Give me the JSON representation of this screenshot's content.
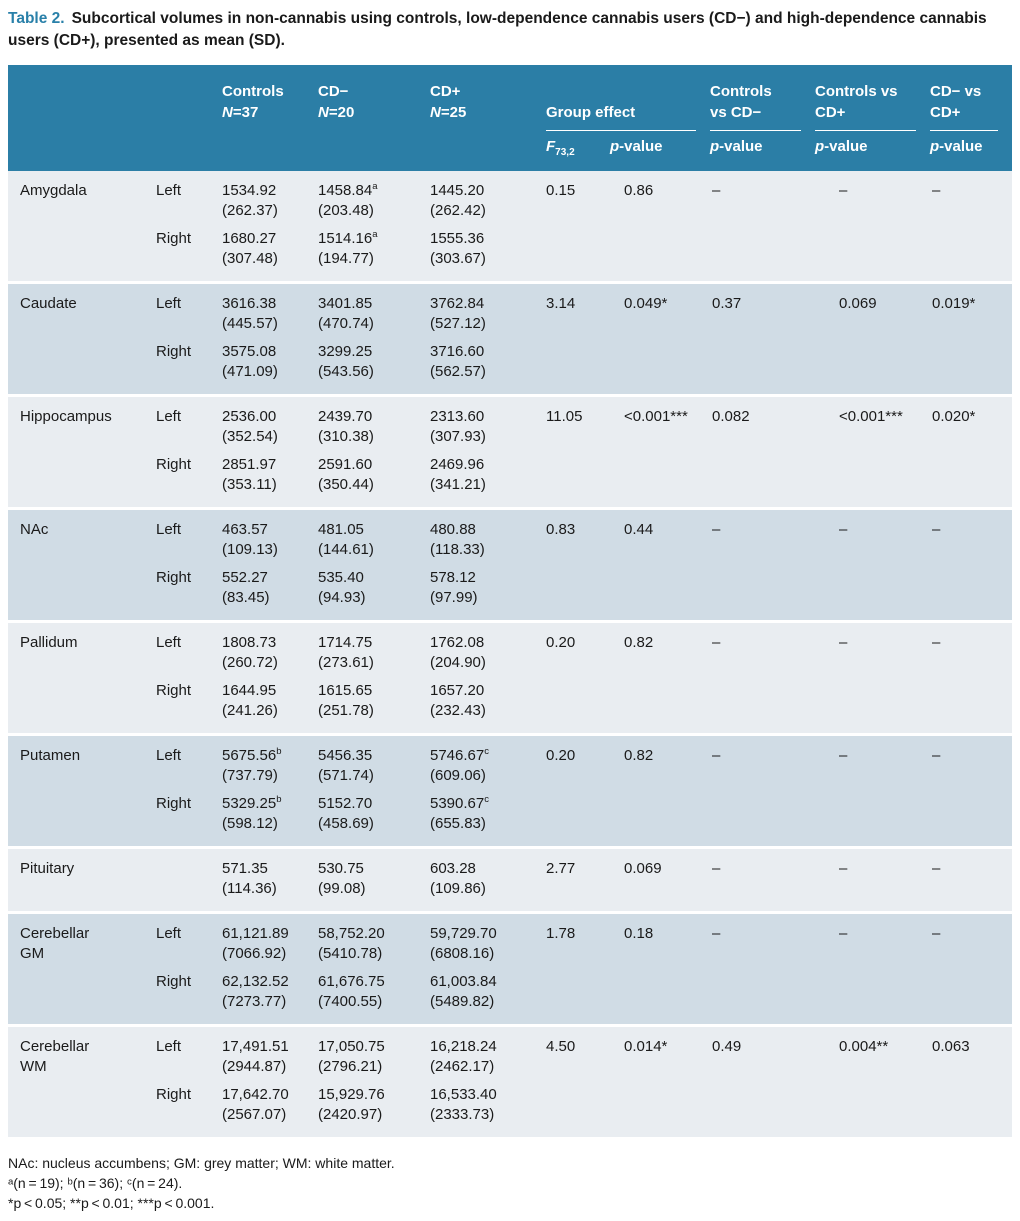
{
  "colors": {
    "header_bg": "#2b7ea6",
    "row_light": "#e9edf1",
    "row_dark": "#d0dce5",
    "caption_accent": "#2980a9",
    "header_text": "#ffffff",
    "body_text": "#1a1a1a"
  },
  "caption": {
    "label": "Table 2.",
    "text": "Subcortical volumes in non-cannabis using controls, low-dependence cannabis users (CD−) and high-dependence cannabis users (CD+), presented as mean (SD)."
  },
  "header": {
    "controls": {
      "l1": "Controls",
      "n": "N",
      "v": "=37"
    },
    "cdm": {
      "l1": "CD−",
      "n": "N",
      "v": "=20"
    },
    "cdp": {
      "l1": "CD+",
      "n": "N",
      "v": "=25"
    },
    "group_effect": {
      "label": "Group effect",
      "f": "F",
      "fsub": "73,2",
      "p_i": "p",
      "p_r": "-value"
    },
    "c_vs_cdm": {
      "l1": "Controls",
      "l2": "vs CD−",
      "p_i": "p",
      "p_r": "-value"
    },
    "c_vs_cdp": {
      "l1": "Controls vs",
      "l2": "CD+",
      "p_i": "p",
      "p_r": "-value"
    },
    "cdm_vs_cdp": {
      "l1": "CD− vs",
      "l2": "CD+",
      "p_i": "p",
      "p_r": "-value"
    }
  },
  "table": {
    "rows": [
      {
        "region": "Amygdala",
        "region2": "",
        "f": "0.15",
        "p": "0.86",
        "p1": "–",
        "p2": "–",
        "p3": "–",
        "sides": [
          {
            "label": "Left",
            "c0m": "1534.92",
            "c0s": "",
            "c0sd": "(262.37)",
            "c1m": "1458.84",
            "c1s": "a",
            "c1sd": "(203.48)",
            "c2m": "1445.20",
            "c2s": "",
            "c2sd": "(262.42)"
          },
          {
            "label": "Right",
            "c0m": "1680.27",
            "c0s": "",
            "c0sd": "(307.48)",
            "c1m": "1514.16",
            "c1s": "a",
            "c1sd": "(194.77)",
            "c2m": "1555.36",
            "c2s": "",
            "c2sd": "(303.67)"
          }
        ]
      },
      {
        "region": "Caudate",
        "region2": "",
        "f": "3.14",
        "p": "0.049*",
        "p1": "0.37",
        "p2": "0.069",
        "p3": "0.019*",
        "sides": [
          {
            "label": "Left",
            "c0m": "3616.38",
            "c0s": "",
            "c0sd": "(445.57)",
            "c1m": "3401.85",
            "c1s": "",
            "c1sd": "(470.74)",
            "c2m": "3762.84",
            "c2s": "",
            "c2sd": "(527.12)"
          },
          {
            "label": "Right",
            "c0m": "3575.08",
            "c0s": "",
            "c0sd": "(471.09)",
            "c1m": "3299.25",
            "c1s": "",
            "c1sd": "(543.56)",
            "c2m": "3716.60",
            "c2s": "",
            "c2sd": "(562.57)"
          }
        ]
      },
      {
        "region": "Hippocampus",
        "region2": "",
        "f": "11.05",
        "p": "<0.001***",
        "p1": "0.082",
        "p2": "<0.001***",
        "p3": "0.020*",
        "sides": [
          {
            "label": "Left",
            "c0m": "2536.00",
            "c0s": "",
            "c0sd": "(352.54)",
            "c1m": "2439.70",
            "c1s": "",
            "c1sd": "(310.38)",
            "c2m": "2313.60",
            "c2s": "",
            "c2sd": "(307.93)"
          },
          {
            "label": "Right",
            "c0m": "2851.97",
            "c0s": "",
            "c0sd": "(353.11)",
            "c1m": "2591.60",
            "c1s": "",
            "c1sd": "(350.44)",
            "c2m": "2469.96",
            "c2s": "",
            "c2sd": "(341.21)"
          }
        ]
      },
      {
        "region": "NAc",
        "region2": "",
        "f": "0.83",
        "p": "0.44",
        "p1": "–",
        "p2": "–",
        "p3": "–",
        "sides": [
          {
            "label": "Left",
            "c0m": "463.57",
            "c0s": "",
            "c0sd": "(109.13)",
            "c1m": "481.05",
            "c1s": "",
            "c1sd": "(144.61)",
            "c2m": "480.88",
            "c2s": "",
            "c2sd": "(118.33)"
          },
          {
            "label": "Right",
            "c0m": "552.27",
            "c0s": "",
            "c0sd": "(83.45)",
            "c1m": "535.40",
            "c1s": "",
            "c1sd": "(94.93)",
            "c2m": "578.12",
            "c2s": "",
            "c2sd": "(97.99)"
          }
        ]
      },
      {
        "region": "Pallidum",
        "region2": "",
        "f": "0.20",
        "p": "0.82",
        "p1": "–",
        "p2": "–",
        "p3": "–",
        "sides": [
          {
            "label": "Left",
            "c0m": "1808.73",
            "c0s": "",
            "c0sd": "(260.72)",
            "c1m": "1714.75",
            "c1s": "",
            "c1sd": "(273.61)",
            "c2m": "1762.08",
            "c2s": "",
            "c2sd": "(204.90)"
          },
          {
            "label": "Right",
            "c0m": "1644.95",
            "c0s": "",
            "c0sd": "(241.26)",
            "c1m": "1615.65",
            "c1s": "",
            "c1sd": "(251.78)",
            "c2m": "1657.20",
            "c2s": "",
            "c2sd": "(232.43)"
          }
        ]
      },
      {
        "region": "Putamen",
        "region2": "",
        "f": "0.20",
        "p": "0.82",
        "p1": "–",
        "p2": "–",
        "p3": "–",
        "sides": [
          {
            "label": "Left",
            "c0m": "5675.56",
            "c0s": "b",
            "c0sd": "(737.79)",
            "c1m": "5456.35",
            "c1s": "",
            "c1sd": "(571.74)",
            "c2m": "5746.67",
            "c2s": "c",
            "c2sd": "(609.06)"
          },
          {
            "label": "Right",
            "c0m": "5329.25",
            "c0s": "b",
            "c0sd": "(598.12)",
            "c1m": "5152.70",
            "c1s": "",
            "c1sd": "(458.69)",
            "c2m": "5390.67",
            "c2s": "c",
            "c2sd": "(655.83)"
          }
        ]
      },
      {
        "region": "Pituitary",
        "region2": "",
        "f": "2.77",
        "p": "0.069",
        "p1": "–",
        "p2": "–",
        "p3": "–",
        "sides": [
          {
            "label": "",
            "c0m": "571.35",
            "c0s": "",
            "c0sd": "(114.36)",
            "c1m": "530.75",
            "c1s": "",
            "c1sd": "(99.08)",
            "c2m": "603.28",
            "c2s": "",
            "c2sd": "(109.86)"
          }
        ]
      },
      {
        "region": "Cerebellar",
        "region2": "GM",
        "f": "1.78",
        "p": "0.18",
        "p1": "–",
        "p2": "–",
        "p3": "–",
        "sides": [
          {
            "label": "Left",
            "c0m": "61,121.89",
            "c0s": "",
            "c0sd": "(7066.92)",
            "c1m": "58,752.20",
            "c1s": "",
            "c1sd": "(5410.78)",
            "c2m": "59,729.70",
            "c2s": "",
            "c2sd": "(6808.16)"
          },
          {
            "label": "Right",
            "c0m": "62,132.52",
            "c0s": "",
            "c0sd": "(7273.77)",
            "c1m": "61,676.75",
            "c1s": "",
            "c1sd": "(7400.55)",
            "c2m": "61,003.84",
            "c2s": "",
            "c2sd": "(5489.82)"
          }
        ]
      },
      {
        "region": "Cerebellar",
        "region2": "WM",
        "f": "4.50",
        "p": "0.014*",
        "p1": "0.49",
        "p2": "0.004**",
        "p3": "0.063",
        "sides": [
          {
            "label": "Left",
            "c0m": "17,491.51",
            "c0s": "",
            "c0sd": "(2944.87)",
            "c1m": "17,050.75",
            "c1s": "",
            "c1sd": "(2796.21)",
            "c2m": "16,218.24",
            "c2s": "",
            "c2sd": "(2462.17)"
          },
          {
            "label": "Right",
            "c0m": "17,642.70",
            "c0s": "",
            "c0sd": "(2567.07)",
            "c1m": "15,929.76",
            "c1s": "",
            "c1sd": "(2420.97)",
            "c2m": "16,533.40",
            "c2s": "",
            "c2sd": "(2333.73)"
          }
        ]
      }
    ]
  },
  "footnotes": {
    "line1": "NAc: nucleus accumbens; GM: grey matter; WM: white matter.",
    "line2": "ᵃ(n = 19); ᵇ(n = 36); ᶜ(n = 24).",
    "line3": "*p < 0.05; **p < 0.01; ***p < 0.001."
  }
}
